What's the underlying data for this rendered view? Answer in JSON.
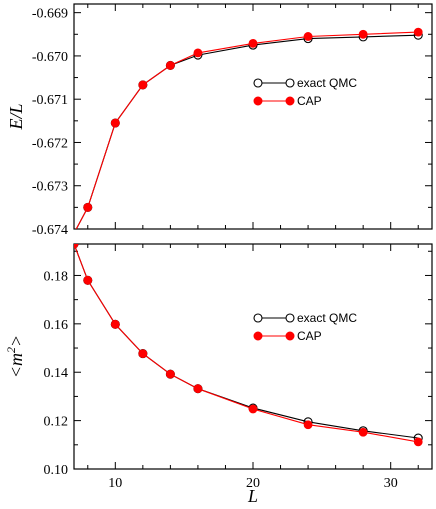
{
  "chart_data": [
    {
      "type": "line",
      "title": "",
      "xlabel": "",
      "ylabel": "E/L",
      "xlim": [
        7,
        33
      ],
      "ylim": [
        -0.674,
        -0.6688
      ],
      "x_ticks": [
        10,
        20,
        30
      ],
      "y_ticks": [
        -0.674,
        -0.673,
        -0.672,
        -0.671,
        -0.67,
        -0.669
      ],
      "y_tick_labels": [
        "-0.674",
        "-0.673",
        "-0.672",
        "-0.671",
        "-0.670",
        "-0.669"
      ],
      "legend_position": "center-right",
      "series": [
        {
          "name": "exact QMC",
          "marker": "open-circle",
          "color": "#000000",
          "x": [
            7,
            8,
            10,
            12,
            14,
            16,
            20,
            24,
            28,
            32
          ],
          "y": [
            -0.6741,
            -0.6735,
            -0.67155,
            -0.67067,
            -0.67022,
            -0.66998,
            -0.66975,
            -0.6696,
            -0.66956,
            -0.66952
          ]
        },
        {
          "name": "CAP",
          "marker": "filled-circle",
          "color": "#ff0000",
          "x": [
            7,
            8,
            10,
            12,
            14,
            16,
            20,
            24,
            28,
            32
          ],
          "y": [
            -0.6741,
            -0.6735,
            -0.67155,
            -0.67067,
            -0.67022,
            -0.66993,
            -0.66971,
            -0.66955,
            -0.6695,
            -0.66945
          ]
        }
      ]
    },
    {
      "type": "line",
      "title": "",
      "xlabel": "L",
      "ylabel": "<m²>",
      "ylabel_main": "<m",
      "ylabel_sup": "2",
      "ylabel_end": ">",
      "xlim": [
        7,
        33
      ],
      "ylim": [
        0.1,
        0.193
      ],
      "x_ticks": [
        10,
        20,
        30
      ],
      "y_ticks": [
        0.1,
        0.12,
        0.14,
        0.16,
        0.18
      ],
      "y_tick_labels": [
        "0.10",
        "0.12",
        "0.14",
        "0.16",
        "0.18"
      ],
      "legend_position": "center-right",
      "series": [
        {
          "name": "exact QMC",
          "marker": "open-circle",
          "color": "#000000",
          "x": [
            7,
            8,
            10,
            12,
            14,
            16,
            20,
            24,
            28,
            32
          ],
          "y": [
            0.193,
            0.178,
            0.1598,
            0.1477,
            0.1392,
            0.1332,
            0.1252,
            0.1195,
            0.1158,
            0.1128
          ]
        },
        {
          "name": "CAP",
          "marker": "filled-circle",
          "color": "#ff0000",
          "x": [
            7,
            8,
            10,
            12,
            14,
            16,
            20,
            24,
            28,
            32
          ],
          "y": [
            0.193,
            0.178,
            0.1598,
            0.1477,
            0.1392,
            0.1332,
            0.1248,
            0.1183,
            0.1152,
            0.1112
          ]
        }
      ]
    }
  ]
}
